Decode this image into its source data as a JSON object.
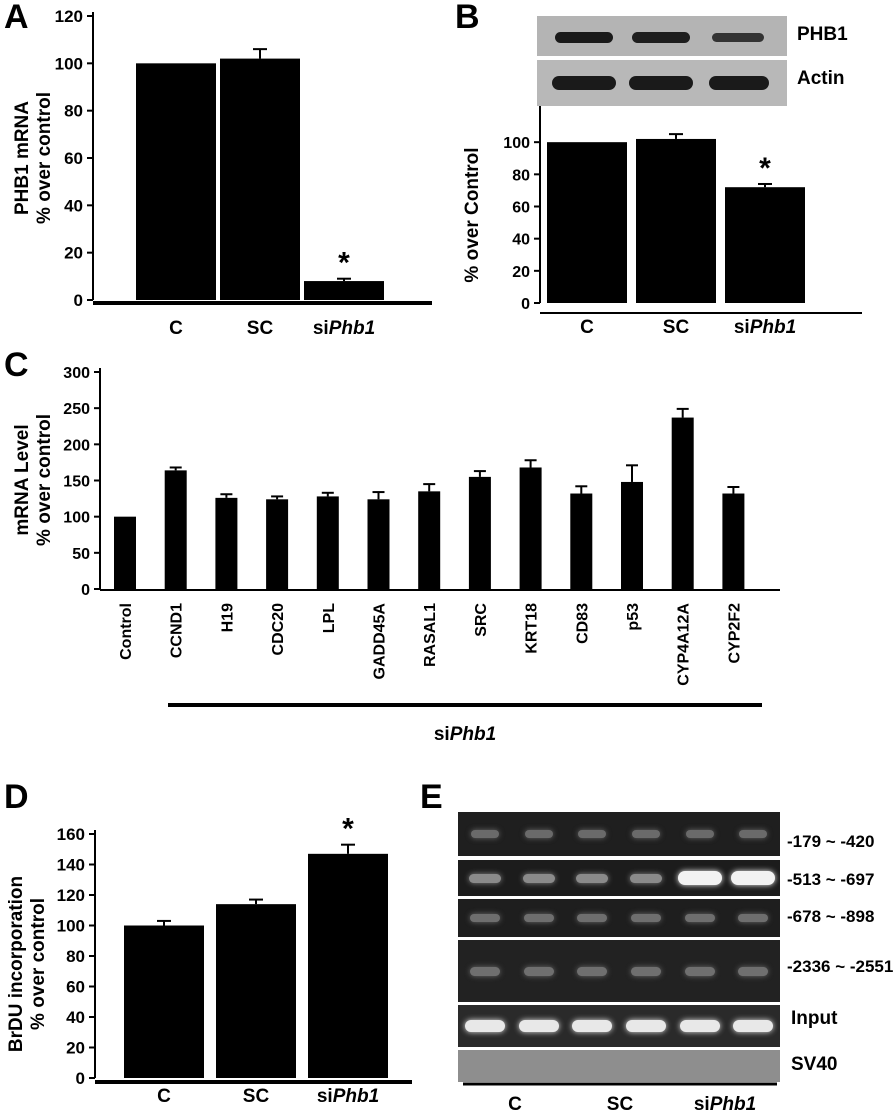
{
  "panels": {
    "A": "A",
    "B": "B",
    "C": "C",
    "D": "D",
    "E": "E"
  },
  "chart_data": [
    {
      "id": "A",
      "type": "bar",
      "categories": [
        "C",
        "SC",
        "siPhb1"
      ],
      "values": [
        100,
        102,
        8
      ],
      "errors": [
        0,
        4,
        1
      ],
      "significance": [
        "",
        "",
        "*"
      ],
      "ylabel": "PHB1 mRNA\n% over control",
      "ylim": [
        0,
        120
      ],
      "yticks": [
        0,
        20,
        40,
        60,
        80,
        100,
        120
      ],
      "grid": false
    },
    {
      "id": "B",
      "type": "bar",
      "categories": [
        "C",
        "SC",
        "siPhb1"
      ],
      "values": [
        100,
        102,
        72
      ],
      "errors": [
        0,
        3,
        2
      ],
      "significance": [
        "",
        "",
        "*"
      ],
      "ylabel": "% over Control",
      "ylim": [
        0,
        120
      ],
      "yticks": [
        0,
        20,
        40,
        60,
        80,
        100
      ],
      "grid": false,
      "blot": {
        "bands": [
          "PHB1",
          "Actin"
        ]
      }
    },
    {
      "id": "C",
      "type": "bar",
      "categories": [
        "Control",
        "CCND1",
        "H19",
        "CDC20",
        "LPL",
        "GADD45A",
        "RASAL1",
        "SRC",
        "KRT18",
        "CD83",
        "p53",
        "CYP4A12A",
        "CYP2F2"
      ],
      "values": [
        100,
        164,
        126,
        124,
        128,
        124,
        135,
        155,
        168,
        132,
        148,
        237,
        132
      ],
      "errors": [
        0,
        4,
        5,
        4,
        5,
        10,
        10,
        8,
        10,
        10,
        23,
        12,
        9
      ],
      "ylabel": "mRNA Level\n% over control",
      "ylim": [
        0,
        300
      ],
      "yticks": [
        0,
        50,
        100,
        150,
        200,
        250,
        300
      ],
      "grid": false,
      "group_label": "siPhb1"
    },
    {
      "id": "D",
      "type": "bar",
      "categories": [
        "C",
        "SC",
        "siPhb1"
      ],
      "values": [
        100,
        114,
        147
      ],
      "errors": [
        3,
        3,
        6
      ],
      "significance": [
        "",
        "",
        "*"
      ],
      "ylabel": "BrDU incorporation\n% over control",
      "ylim": [
        0,
        160
      ],
      "yticks": [
        0,
        20,
        40,
        60,
        80,
        100,
        120,
        140,
        160
      ],
      "grid": false
    }
  ],
  "gel": {
    "rows": [
      "-179 ~ -420",
      "-513 ~ -697",
      "-678 ~ -898",
      "-2336 ~ -2551",
      "Input",
      "SV40"
    ],
    "groups": [
      "C",
      "SC",
      "siPhb1"
    ]
  }
}
